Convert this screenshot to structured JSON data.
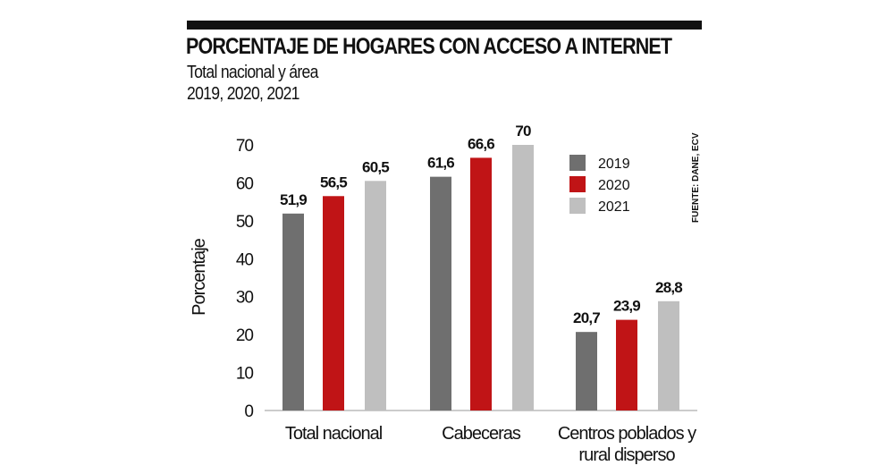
{
  "title": "PORCENTAJE DE HOGARES CON ACCESO A INTERNET",
  "subtitle_1": "Total nacional y área",
  "subtitle_2": "2019, 2020, 2021",
  "source": "FUENTE: DANE, ECV",
  "chart_data": {
    "type": "bar",
    "title": "PORCENTAJE DE HOGARES CON ACCESO A INTERNET",
    "ylabel": "Porcentaje",
    "xlabel": "",
    "ylim": [
      0,
      70
    ],
    "yticks": [
      0,
      10,
      20,
      30,
      40,
      50,
      60,
      70
    ],
    "categories": [
      [
        "Total nacional"
      ],
      [
        "Cabeceras"
      ],
      [
        "Centros poblados y",
        "rural disperso"
      ]
    ],
    "series": [
      {
        "name": "2019",
        "color": "#6f6f6f",
        "values": [
          51.9,
          61.6,
          20.7
        ],
        "labels": [
          "51,9",
          "61,6",
          "20,7"
        ]
      },
      {
        "name": "2020",
        "color": "#c01416",
        "values": [
          56.5,
          66.6,
          23.9
        ],
        "labels": [
          "56,5",
          "66,6",
          "23,9"
        ]
      },
      {
        "name": "2021",
        "color": "#bfbfbf",
        "values": [
          60.5,
          70,
          28.8
        ],
        "labels": [
          "60,5",
          "70",
          "28,8"
        ]
      }
    ],
    "legend_position": "top-right",
    "grid": false
  }
}
